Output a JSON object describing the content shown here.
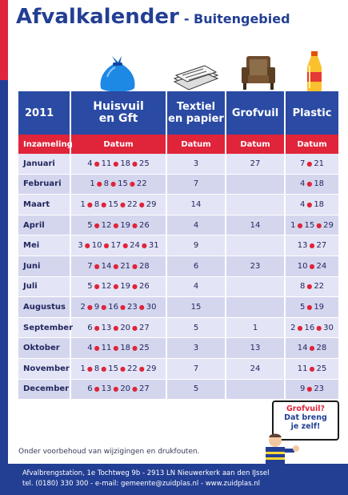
{
  "title": {
    "main": "Afvalkalender",
    "sub": "- Buitengebied"
  },
  "icons": [
    "trash-bag-icon",
    "newspaper-icon",
    "armchair-icon",
    "plastic-bottle-icon"
  ],
  "colors": {
    "primary": "#233f94",
    "accent": "#e0243a",
    "row_light": "#e3e4f5",
    "row_dark": "#d4d6ee"
  },
  "table": {
    "year": "2011",
    "columns": [
      {
        "line1": "Huisvuil",
        "line2": "en Gft"
      },
      {
        "line1": "Textiel",
        "line2": "en papier"
      },
      {
        "line1": "Grofvuil",
        "line2": ""
      },
      {
        "line1": "Plastic",
        "line2": ""
      }
    ],
    "subheader": {
      "first": "Inzameling",
      "col": "Datum"
    },
    "rows": [
      {
        "month": "Januari",
        "huisvuil": [
          "4",
          "11",
          "18",
          "25"
        ],
        "textiel": "3",
        "grofvuil": "27",
        "plastic": [
          "7",
          "21"
        ]
      },
      {
        "month": "Februari",
        "huisvuil": [
          "1",
          "8",
          "15",
          "22"
        ],
        "textiel": "7",
        "grofvuil": "",
        "plastic": [
          "4",
          "18"
        ]
      },
      {
        "month": "Maart",
        "huisvuil": [
          "1",
          "8",
          "15",
          "22",
          "29"
        ],
        "textiel": "14",
        "grofvuil": "",
        "plastic": [
          "4",
          "18"
        ]
      },
      {
        "month": "April",
        "huisvuil": [
          "5",
          "12",
          "19",
          "26"
        ],
        "textiel": "4",
        "grofvuil": "14",
        "plastic": [
          "1",
          "15",
          "29"
        ]
      },
      {
        "month": "Mei",
        "huisvuil": [
          "3",
          "10",
          "17",
          "24",
          "31"
        ],
        "textiel": "9",
        "grofvuil": "",
        "plastic": [
          "13",
          "27"
        ]
      },
      {
        "month": "Juni",
        "huisvuil": [
          "7",
          "14",
          "21",
          "28"
        ],
        "textiel": "6",
        "grofvuil": "23",
        "plastic": [
          "10",
          "24"
        ]
      },
      {
        "month": "Juli",
        "huisvuil": [
          "5",
          "12",
          "19",
          "26"
        ],
        "textiel": "4",
        "grofvuil": "",
        "plastic": [
          "8",
          "22"
        ]
      },
      {
        "month": "Augustus",
        "huisvuil": [
          "2",
          "9",
          "16",
          "23",
          "30"
        ],
        "textiel": "15",
        "grofvuil": "",
        "plastic": [
          "5",
          "19"
        ]
      },
      {
        "month": "September",
        "huisvuil": [
          "6",
          "13",
          "20",
          "27"
        ],
        "textiel": "5",
        "grofvuil": "1",
        "plastic": [
          "2",
          "16",
          "30"
        ]
      },
      {
        "month": "Oktober",
        "huisvuil": [
          "4",
          "11",
          "18",
          "25"
        ],
        "textiel": "3",
        "grofvuil": "13",
        "plastic": [
          "14",
          "28"
        ]
      },
      {
        "month": "November",
        "huisvuil": [
          "1",
          "8",
          "15",
          "22",
          "29"
        ],
        "textiel": "7",
        "grofvuil": "24",
        "plastic": [
          "11",
          "25"
        ]
      },
      {
        "month": "December",
        "huisvuil": [
          "6",
          "13",
          "20",
          "27"
        ],
        "textiel": "5",
        "grofvuil": "",
        "plastic": [
          "9",
          "23"
        ]
      }
    ]
  },
  "footnote": "Onder voorbehoud van wijzigingen en drukfouten.",
  "speech": {
    "line1": "Grofvuil?",
    "line2": "Dat breng",
    "line3": "je zelf!"
  },
  "footer": {
    "line1": "Afvalbrengstation, 1e Tochtweg 9b - 2913 LN Nieuwerkerk aan den IJssel",
    "line2": "tel. (0180) 330 300 - e-mail: gemeente@zuidplas.nl - www.zuidplas.nl"
  }
}
